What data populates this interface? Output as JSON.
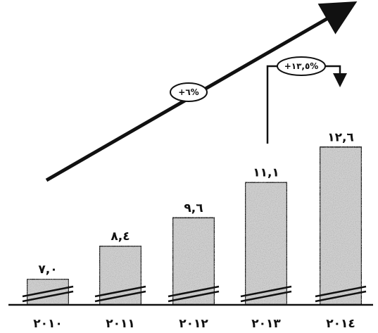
{
  "chart_data": {
    "type": "bar",
    "title": "",
    "xlabel": "",
    "ylabel": "",
    "categories": [
      "٢٠١٠",
      "٢٠١١",
      "٢٠١٢",
      "٢٠١٣",
      "٢٠١٤"
    ],
    "values": [
      7.0,
      8.4,
      9.6,
      11.1,
      12.6
    ],
    "value_labels": [
      "٧,٠",
      "٨,٤",
      "٩,٦",
      "١١,١",
      "١٢,٦"
    ],
    "axis_break": true,
    "grid": false,
    "annotations": {
      "trend_arrow_label": "+٦%",
      "growth_badge_label": "+١٣,٥%"
    },
    "colors": {
      "bar_fill": "#cfcfcf",
      "ink": "#111111",
      "background": "#ffffff"
    }
  }
}
